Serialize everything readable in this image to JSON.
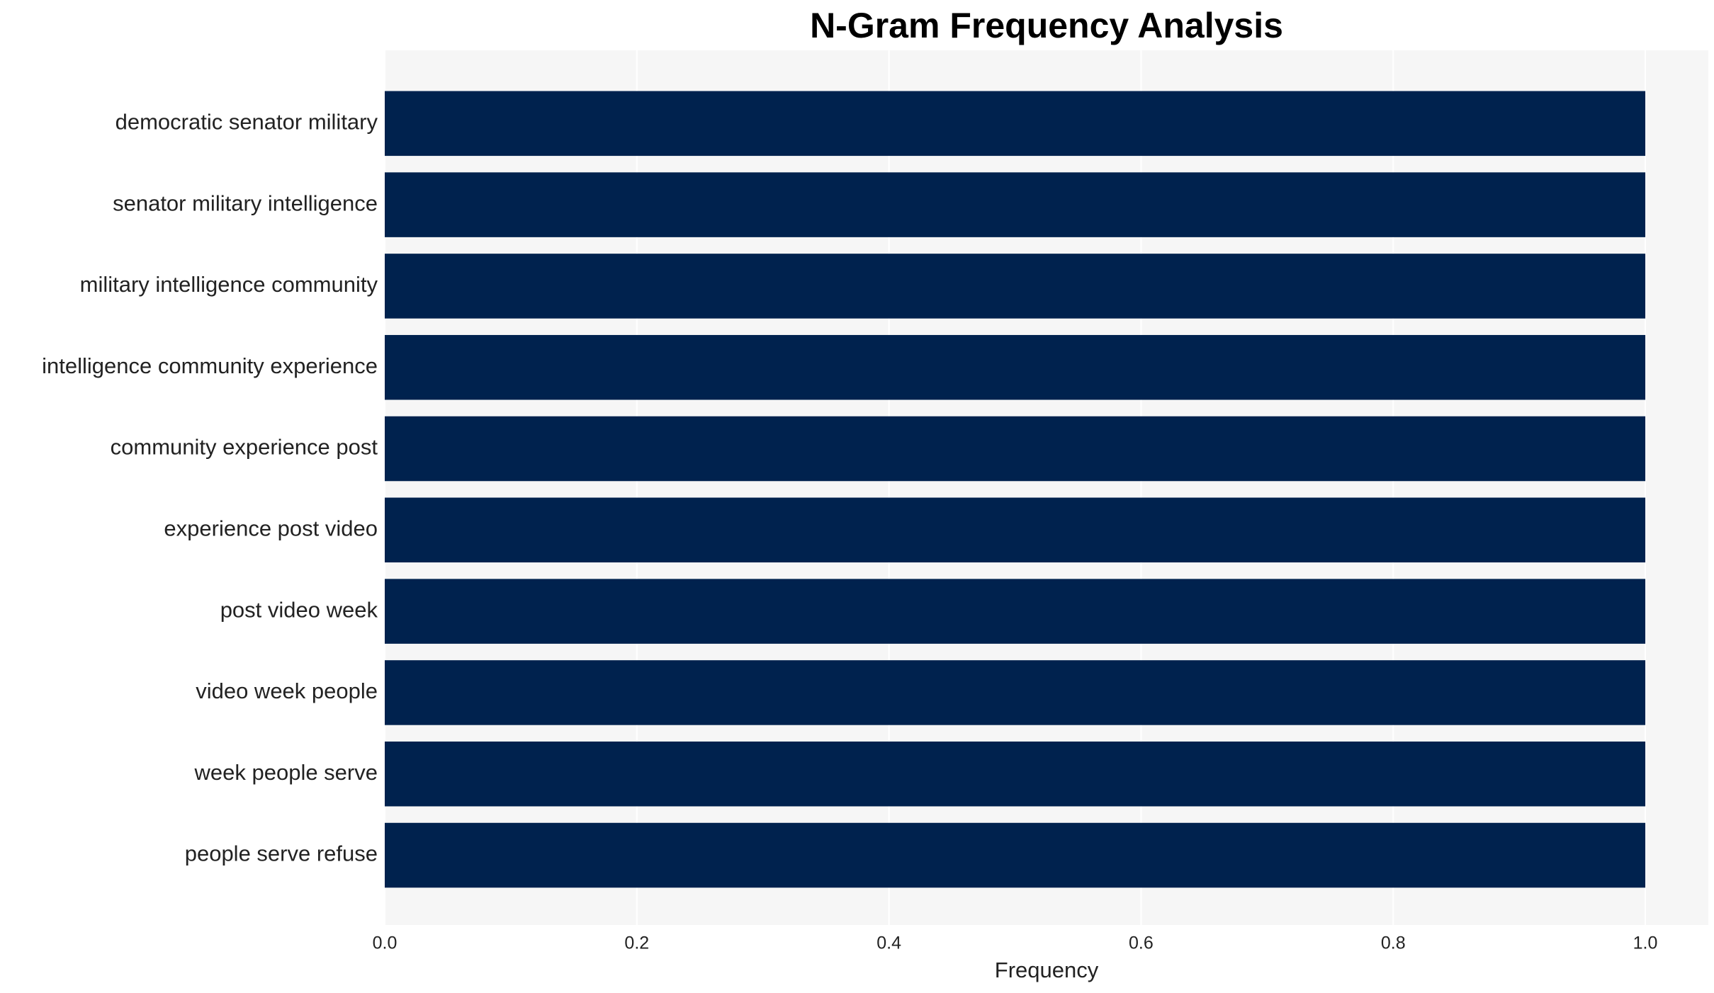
{
  "chart_data": {
    "type": "barh",
    "title": "N-Gram Frequency Analysis",
    "xlabel": "Frequency",
    "categories": [
      "democratic senator military",
      "senator military intelligence",
      "military intelligence community",
      "intelligence community experience",
      "community experience post",
      "experience post video",
      "post video week",
      "video week people",
      "week people serve",
      "people serve refuse"
    ],
    "values": [
      1,
      1,
      1,
      1,
      1,
      1,
      1,
      1,
      1,
      1
    ],
    "color": "#00224e",
    "xlim": [
      0,
      1.05
    ],
    "xticks": [
      {
        "value": 0,
        "label": "0.0"
      },
      0.2,
      0.4,
      0.6,
      0.8,
      {
        "value": 1,
        "label": "1.0"
      }
    ],
    "grid": true
  }
}
